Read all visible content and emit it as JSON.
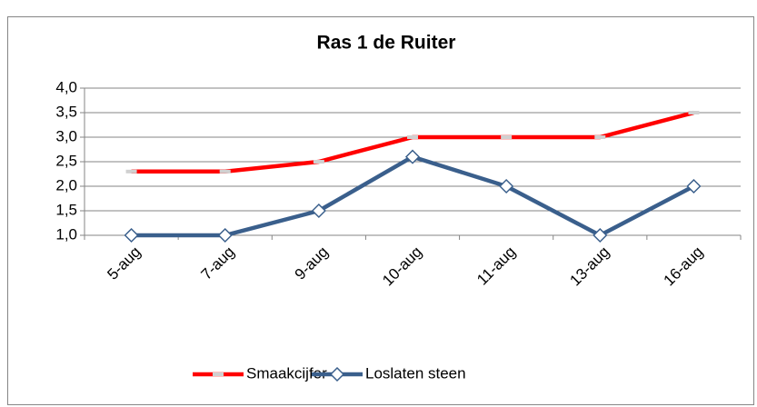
{
  "chart_data": {
    "type": "line",
    "title": "Ras 1 de Ruiter",
    "categories": [
      "5-aug",
      "7-aug",
      "9-aug",
      "10-aug",
      "11-aug",
      "13-aug",
      "16-aug"
    ],
    "series": [
      {
        "name": "Smaakcijfer",
        "color": "#ff0000",
        "marker": "dash",
        "values": [
          2.3,
          2.3,
          2.5,
          3.0,
          3.0,
          3.0,
          3.5
        ]
      },
      {
        "name": "Loslaten steen",
        "color": "#3a5f8c",
        "marker": "diamond",
        "values": [
          1.0,
          1.0,
          1.5,
          2.6,
          2.0,
          1.0,
          2.0
        ]
      }
    ],
    "ylim": [
      1,
      4
    ],
    "yticks": [
      {
        "value": 1,
        "label": "1,0"
      },
      {
        "value": 1.5,
        "label": "1,5"
      },
      {
        "value": 2,
        "label": "2,0"
      },
      {
        "value": 2.5,
        "label": "2,5"
      },
      {
        "value": 3,
        "label": "3,0"
      },
      {
        "value": 3.5,
        "label": "3,5"
      },
      {
        "value": 4,
        "label": "4,0"
      }
    ],
    "grid": true,
    "legend": "bottom"
  }
}
